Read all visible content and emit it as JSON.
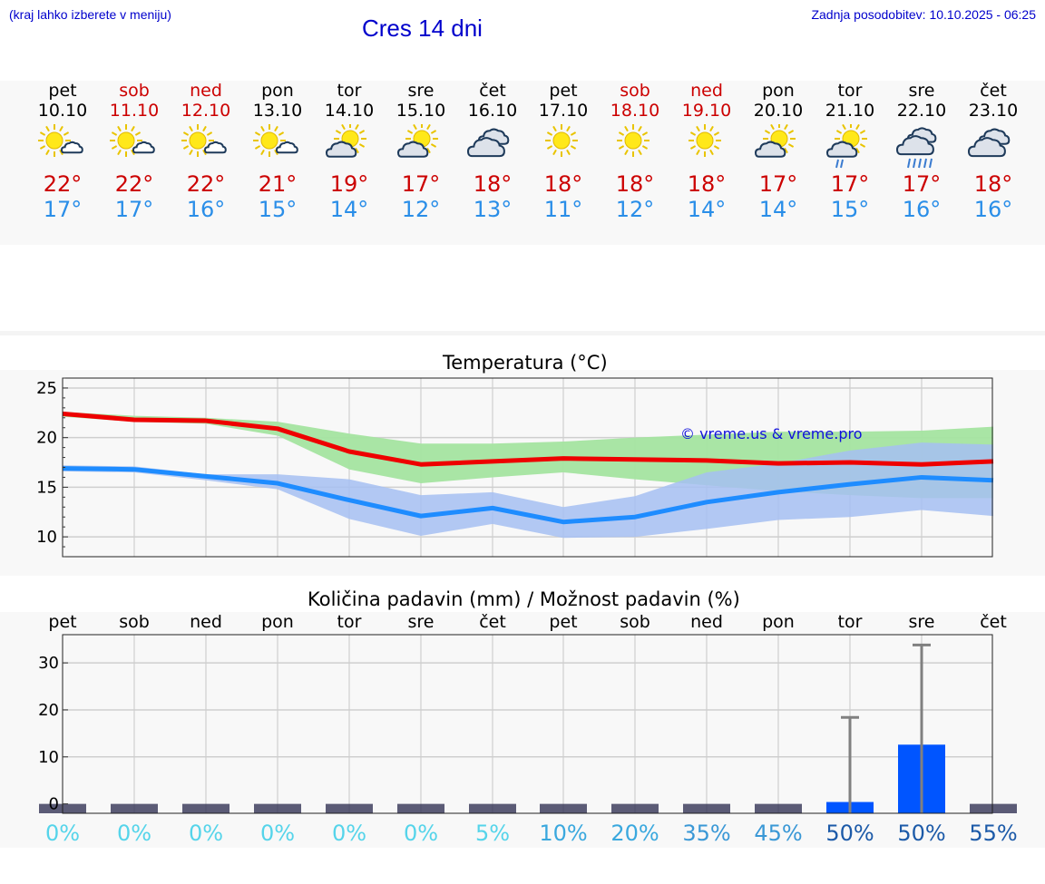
{
  "header": {
    "hint": "(kraj lahko izberete v meniju)",
    "title": "Cres 14 dni",
    "updated": "Zadnja posodobitev: 10.10.2025 - 06:25"
  },
  "colors": {
    "weekday": "#000000",
    "weekend": "#cc0000",
    "tmax": "#cc0000",
    "tmin": "#2a8ee8",
    "precip_bar": "#0055ff"
  },
  "days": [
    {
      "name": "pet",
      "date": "10.10",
      "weekend": false,
      "icon": "sun-cloud-icon",
      "tmax": "22°",
      "tmin": "17°"
    },
    {
      "name": "sob",
      "date": "11.10",
      "weekend": true,
      "icon": "sun-cloud-icon",
      "tmax": "22°",
      "tmin": "17°"
    },
    {
      "name": "ned",
      "date": "12.10",
      "weekend": true,
      "icon": "sun-cloud-icon",
      "tmax": "22°",
      "tmin": "16°"
    },
    {
      "name": "pon",
      "date": "13.10",
      "weekend": false,
      "icon": "sun-cloud-icon",
      "tmax": "21°",
      "tmin": "15°"
    },
    {
      "name": "tor",
      "date": "14.10",
      "weekend": false,
      "icon": "cloud-sun-icon",
      "tmax": "19°",
      "tmin": "14°"
    },
    {
      "name": "sre",
      "date": "15.10",
      "weekend": false,
      "icon": "cloud-sun-icon",
      "tmax": "17°",
      "tmin": "12°"
    },
    {
      "name": "čet",
      "date": "16.10",
      "weekend": false,
      "icon": "cloudy-icon",
      "tmax": "18°",
      "tmin": "13°"
    },
    {
      "name": "pet",
      "date": "17.10",
      "weekend": false,
      "icon": "sun-icon",
      "tmax": "18°",
      "tmin": "11°"
    },
    {
      "name": "sob",
      "date": "18.10",
      "weekend": true,
      "icon": "sun-icon",
      "tmax": "18°",
      "tmin": "12°"
    },
    {
      "name": "ned",
      "date": "19.10",
      "weekend": true,
      "icon": "sun-icon",
      "tmax": "18°",
      "tmin": "14°"
    },
    {
      "name": "pon",
      "date": "20.10",
      "weekend": false,
      "icon": "cloud-sun-icon",
      "tmax": "17°",
      "tmin": "14°"
    },
    {
      "name": "tor",
      "date": "21.10",
      "weekend": false,
      "icon": "cloud-sun-rain-icon",
      "tmax": "17°",
      "tmin": "15°"
    },
    {
      "name": "sre",
      "date": "22.10",
      "weekend": false,
      "icon": "cloud-rain-icon",
      "tmax": "17°",
      "tmin": "16°"
    },
    {
      "name": "čet",
      "date": "23.10",
      "weekend": false,
      "icon": "cloudy-icon",
      "tmax": "18°",
      "tmin": "16°"
    }
  ],
  "chart_data": [
    {
      "type": "line",
      "title": "Temperatura (°C)",
      "watermark": "© vreme.us & vreme.pro",
      "ylim": [
        8,
        26
      ],
      "yticks": [
        10,
        15,
        20,
        25
      ],
      "grid": true,
      "series": [
        {
          "values": [
            22.4,
            21.8,
            21.7,
            20.9,
            18.6,
            17.3,
            17.6,
            17.9,
            17.8,
            17.7,
            17.4,
            17.5,
            17.3,
            17.6
          ],
          "band": [
            [
              22.1,
              22.6
            ],
            [
              21.6,
              22.2
            ],
            [
              21.4,
              22.0
            ],
            [
              20.2,
              21.6
            ],
            [
              16.8,
              20.4
            ],
            [
              15.4,
              19.4
            ],
            [
              16.0,
              19.4
            ],
            [
              16.5,
              19.6
            ],
            [
              15.8,
              20.0
            ],
            [
              15.2,
              20.3
            ],
            [
              14.6,
              20.6
            ],
            [
              14.2,
              20.6
            ],
            [
              13.9,
              20.7
            ],
            [
              13.9,
              21.1
            ]
          ],
          "color": "#ee0000",
          "band_color": "#a4e4a0"
        },
        {
          "values": [
            16.9,
            16.8,
            16.1,
            15.4,
            13.7,
            12.1,
            12.9,
            11.5,
            12.0,
            13.5,
            14.5,
            15.3,
            16.0,
            15.7
          ],
          "band": [
            [
              16.6,
              17.2
            ],
            [
              16.5,
              17.1
            ],
            [
              15.7,
              16.3
            ],
            [
              14.8,
              16.3
            ],
            [
              11.8,
              15.8
            ],
            [
              10.1,
              14.2
            ],
            [
              11.3,
              14.5
            ],
            [
              9.9,
              13.0
            ],
            [
              10.0,
              14.1
            ],
            [
              10.8,
              16.5
            ],
            [
              11.7,
              17.4
            ],
            [
              12.0,
              18.7
            ],
            [
              12.7,
              19.5
            ],
            [
              12.1,
              19.3
            ]
          ],
          "color": "#1e8cff",
          "band_color": "#a6c0f2"
        }
      ]
    },
    {
      "type": "bar",
      "title": "Količina padavin (mm) / Možnost padavin (%)",
      "categories": [
        "pet",
        "sob",
        "ned",
        "pon",
        "tor",
        "sre",
        "čet",
        "pet",
        "sob",
        "ned",
        "pon",
        "tor",
        "sre",
        "čet"
      ],
      "ylim": [
        -2,
        36
      ],
      "yticks": [
        0,
        10,
        20,
        30
      ],
      "values": [
        0,
        0,
        0,
        0,
        0,
        0,
        0,
        0,
        0,
        0,
        0,
        0.4,
        12.6,
        0
      ],
      "error_max": [
        0,
        0,
        0,
        0,
        0,
        0,
        0,
        0,
        0,
        0,
        0,
        18.4,
        33.8,
        0
      ],
      "probability": [
        "0%",
        "0%",
        "0%",
        "0%",
        "0%",
        "0%",
        "5%",
        "10%",
        "20%",
        "35%",
        "45%",
        "50%",
        "50%",
        "55%"
      ],
      "probability_colors": [
        "#55d4ea",
        "#55d4ea",
        "#55d4ea",
        "#55d4ea",
        "#55d4ea",
        "#55d4ea",
        "#55d4ea",
        "#3aa8de",
        "#3aa8de",
        "#3a98d6",
        "#3a98d6",
        "#1c5aa8",
        "#1c5aa8",
        "#1c5aa8"
      ]
    }
  ]
}
